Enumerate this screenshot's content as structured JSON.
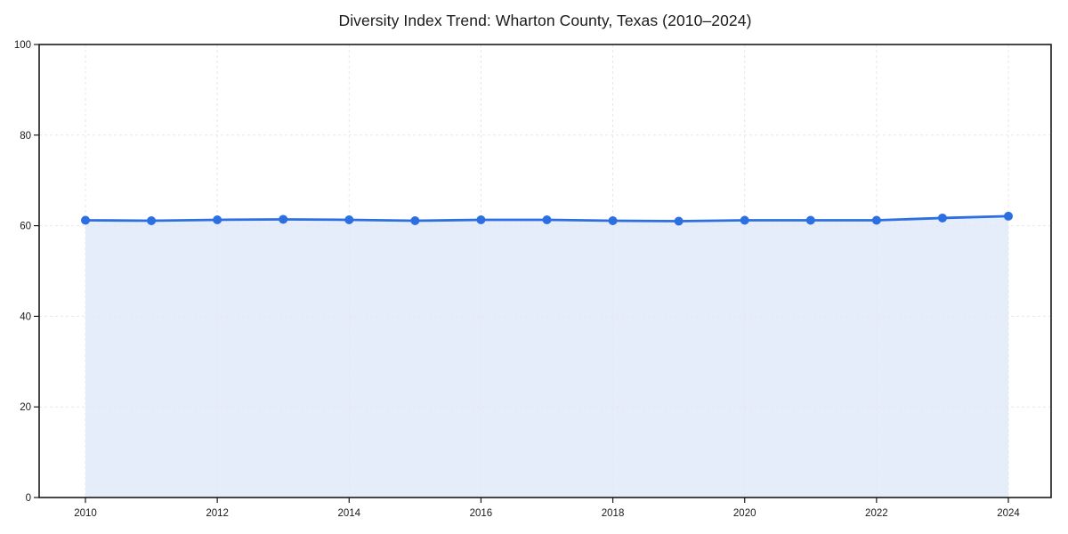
{
  "page": {
    "background": "#ffffff"
  },
  "chart_data": {
    "type": "line",
    "title": "Diversity Index Trend: Wharton County, Texas (2010–2024)",
    "x": [
      2010,
      2011,
      2012,
      2013,
      2014,
      2015,
      2016,
      2017,
      2018,
      2019,
      2020,
      2021,
      2022,
      2023,
      2024
    ],
    "series": [
      {
        "name": "Diversity Index",
        "values": [
          61.2,
          61.1,
          61.3,
          61.4,
          61.3,
          61.1,
          61.3,
          61.3,
          61.1,
          61.0,
          61.2,
          61.2,
          61.2,
          61.7,
          62.1
        ]
      }
    ],
    "xlabel": "",
    "ylabel": "",
    "ylim": [
      0,
      100
    ],
    "yticks": [
      0,
      20,
      40,
      60,
      80,
      100
    ],
    "xticks": [
      2010,
      2012,
      2014,
      2016,
      2018,
      2020,
      2022,
      2024
    ],
    "grid": "dashed, both axes",
    "legend": "none",
    "area_fill": true,
    "marker": "circle",
    "colors": {
      "line": "#2b6fe2",
      "marker": "#2b6fe2",
      "area": "rgba(43,111,226,0.12)",
      "grid": "#e7e7e7",
      "frame": "#1a1a1a",
      "tick_text": "#1a1a1a",
      "background": "#ffffff"
    }
  }
}
